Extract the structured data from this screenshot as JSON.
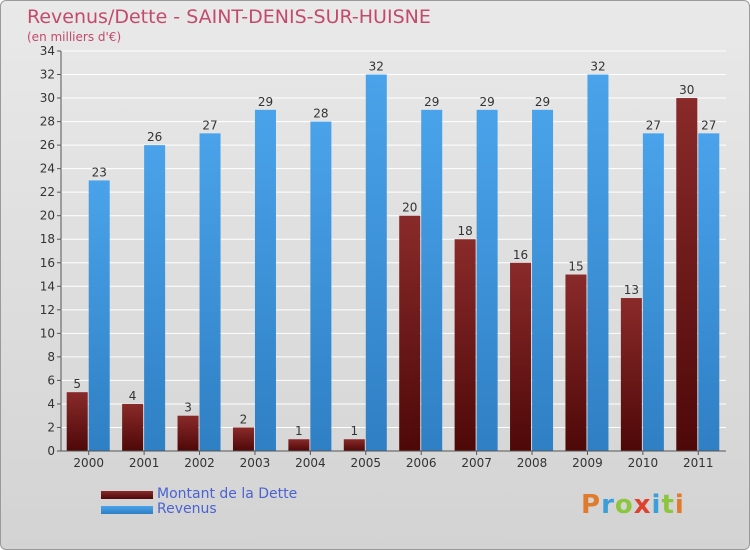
{
  "title": "Revenus/Dette - SAINT-DENIS-SUR-HUISNE",
  "subtitle": "(en milliers d'€)",
  "logo": {
    "text": "Proxiti",
    "letter_colors": [
      "#e07b2e",
      "#3a9fd8",
      "#8cc63f",
      "#e0402e",
      "#3a9fd8",
      "#8cc63f",
      "#e07b2e"
    ]
  },
  "chart_data": {
    "type": "bar",
    "categories": [
      "2000",
      "2001",
      "2002",
      "2003",
      "2004",
      "2005",
      "2006",
      "2007",
      "2008",
      "2009",
      "2010",
      "2011"
    ],
    "series": [
      {
        "name": "Montant de la Dette",
        "color": "#7a1a1a",
        "values": [
          5,
          4,
          3,
          2,
          1,
          1,
          20,
          18,
          16,
          15,
          13,
          30
        ]
      },
      {
        "name": "Revenus",
        "color": "#3d8fd8",
        "values": [
          23,
          26,
          27,
          29,
          28,
          32,
          29,
          29,
          29,
          32,
          27,
          27
        ]
      }
    ],
    "ylim": [
      0,
      34
    ],
    "yticks": [
      "0",
      "2",
      "4",
      "6",
      "8",
      "10",
      "12",
      "14",
      "16",
      "18",
      "20",
      "22",
      "24",
      "26",
      "28",
      "30",
      "32",
      "34"
    ],
    "grid": true,
    "legend": "bottom-left"
  }
}
